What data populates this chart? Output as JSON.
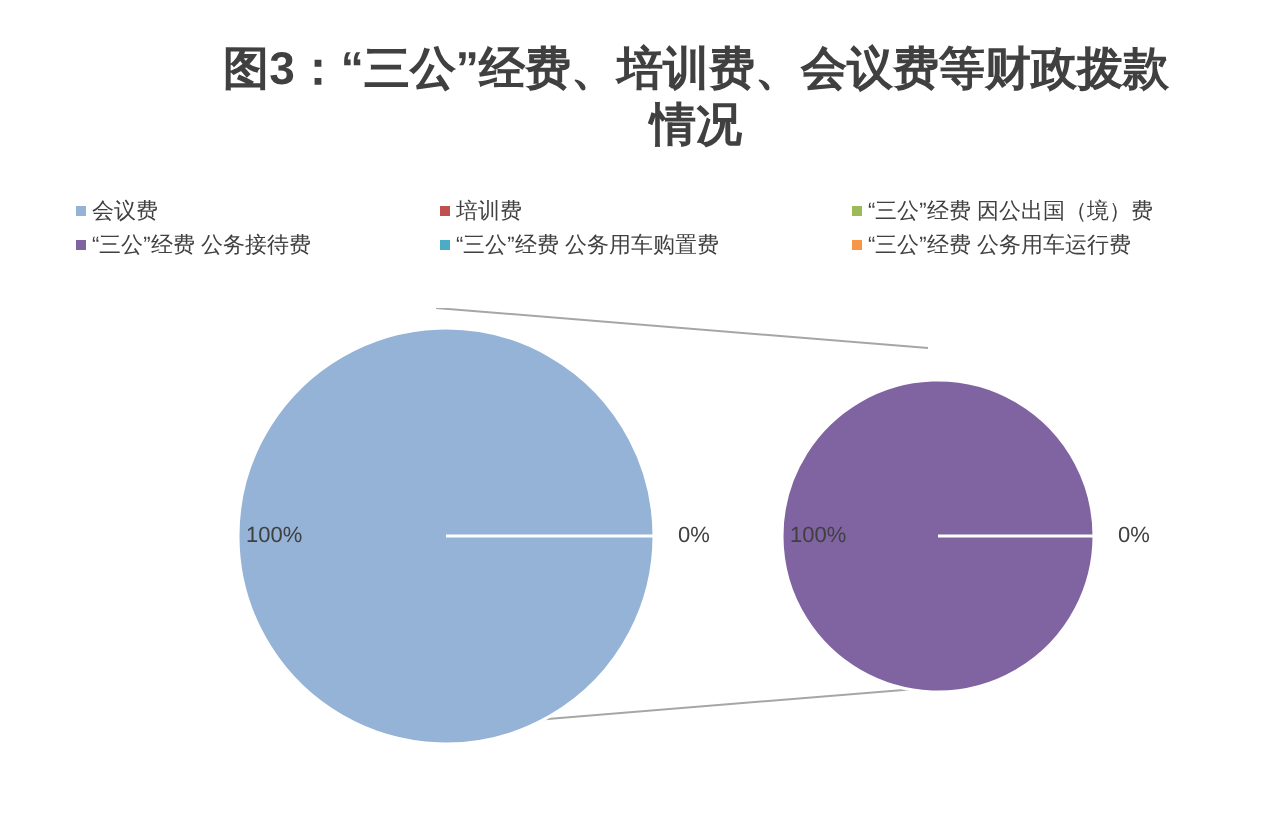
{
  "chart_data": [
    {
      "type": "pie",
      "title": "图3：“三公”经费、培训费、会议费等财政拨款情况",
      "legend": "top",
      "categories": [
        "会议费",
        null
      ],
      "values": [
        100,
        0
      ],
      "colors": [
        "#95b3d7",
        "#95b3d7"
      ],
      "value_labels": [
        "100%",
        "0%"
      ]
    },
    {
      "type": "pie",
      "legend": "top",
      "categories": [
        "培训费",
        "“三公”经费 因公出国（境）费",
        "“三公”经费 公务接待费",
        "“三公”经费 公务用车购置费",
        "“三公”经费 公务用车运行费"
      ],
      "values": [
        0,
        0,
        100,
        0,
        0
      ],
      "colors": [
        "#c0504d",
        "#9bbb59",
        "#8064a2",
        "#4bacc6",
        "#f79646"
      ],
      "value_labels": [
        null,
        null,
        "100%",
        "0%",
        null
      ]
    }
  ]
}
